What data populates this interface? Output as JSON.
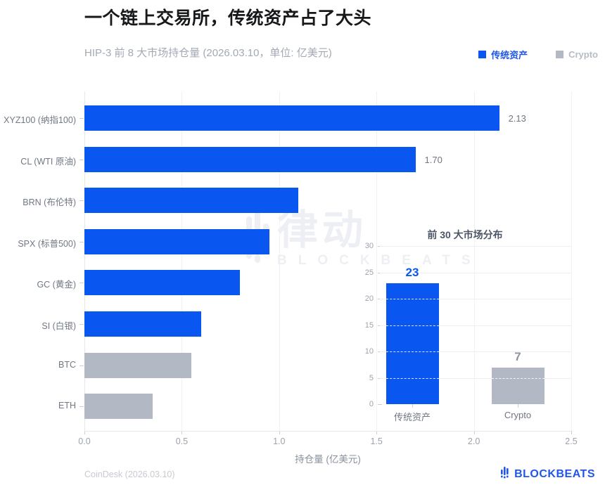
{
  "header": {
    "title": "一个链上交易所，传统资产占了大头",
    "subtitle": "HIP-3 前 8 大市场持仓量 (2026.03.10，单位: 亿美元)"
  },
  "legend": {
    "items": [
      {
        "label": "传统资产",
        "color": "#0a56f0",
        "text_color": "#2056e8"
      },
      {
        "label": "Crypto",
        "color": "#b3b9c4",
        "text_color": "#b6bcc6"
      }
    ]
  },
  "chart_data": [
    {
      "type": "bar",
      "orientation": "horizontal",
      "title": "HIP-3 前 8 大市场持仓量 (2026.03.10，单位: 亿美元)",
      "categories": [
        "XYZ100 (纳指100)",
        "CL (WTI 原油)",
        "BRN (布伦特)",
        "SPX (标普500)",
        "GC (黄金)",
        "SI (白银)",
        "BTC",
        "ETH"
      ],
      "values": [
        2.13,
        1.7,
        1.1,
        0.95,
        0.8,
        0.6,
        0.55,
        0.35
      ],
      "groups": [
        "传统资产",
        "传统资产",
        "传统资产",
        "传统资产",
        "传统资产",
        "传统资产",
        "Crypto",
        "Crypto"
      ],
      "group_colors": {
        "传统资产": "#0a56f0",
        "Crypto": "#b3b9c4"
      },
      "value_labels": [
        "2.13",
        "1.70",
        "",
        "",
        "",
        "",
        "",
        ""
      ],
      "xlabel": "持仓量 (亿美元)",
      "ylabel": "",
      "xlim": [
        0,
        2.5
      ],
      "xticks": [
        0,
        0.5,
        1,
        1.5,
        2,
        2.5
      ],
      "xtick_labels": [
        "0.0",
        "0.5",
        "1.0",
        "1.5",
        "2.0",
        "2.5"
      ],
      "grid": true,
      "legend_position": "top-right"
    },
    {
      "type": "bar",
      "orientation": "vertical",
      "title": "前 30 大市场分布",
      "categories": [
        "传统资产",
        "Crypto"
      ],
      "values": [
        23,
        7
      ],
      "colors": [
        "#0a56f0",
        "#b3b9c4"
      ],
      "value_labels": [
        "23",
        "7"
      ],
      "value_label_colors": [
        "#0a56f0",
        "#8e96a2"
      ],
      "ylim": [
        0,
        30
      ],
      "yticks": [
        0,
        5,
        10,
        15,
        20,
        25,
        30
      ],
      "grid": true
    }
  ],
  "watermark": {
    "cn_text": "律动",
    "en_text": "BLOCKBEATS"
  },
  "footer": {
    "source": "CoinDesk (2026.03.10)",
    "brand": "BLOCKBEATS"
  }
}
